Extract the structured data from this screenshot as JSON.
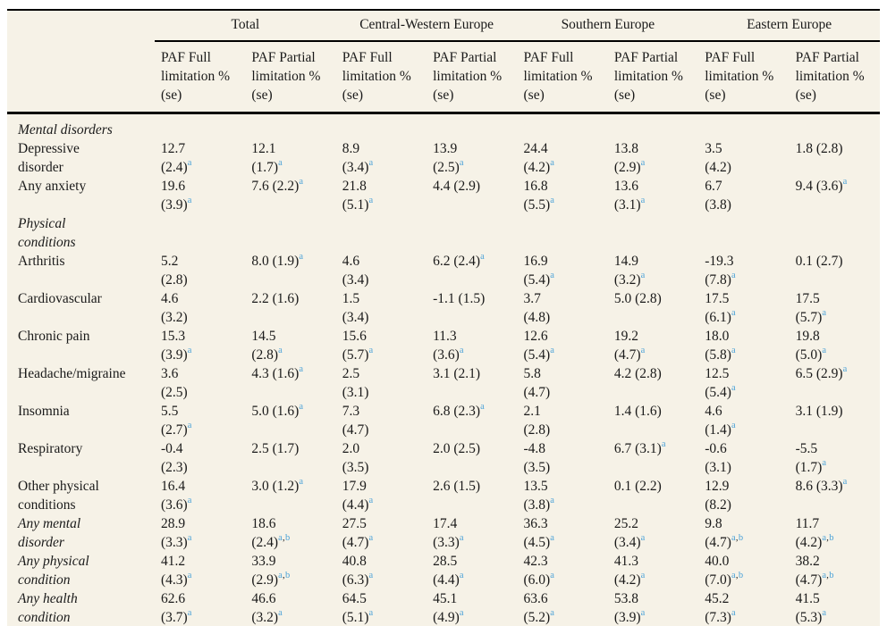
{
  "colors": {
    "table_background": "#f6f2e7",
    "text": "#1a1a1a",
    "superscript_blue": "#4da3d8",
    "rule": "#000000"
  },
  "table": {
    "group_headers": [
      {
        "label": "Total"
      },
      {
        "label": "Central-Western Europe"
      },
      {
        "label": "Southern Europe"
      },
      {
        "label": "Eastern Europe"
      }
    ],
    "col_headers": [
      "PAF Full\nlimitation %\n(se)",
      "PAF Partial\nlimitation %\n(se)",
      "PAF Full\nlimitation %\n(se)",
      "PAF Partial\nlimitation %\n(se)",
      "PAF Full\nlimitation %\n(se)",
      "PAF Partial\nlimitation %\n(se)",
      "PAF Full\nlimitation %\n(se)",
      "PAF Partial\nlimitation %\n(se)"
    ],
    "rows": [
      {
        "type": "section",
        "label": "Mental disorders",
        "cells": [
          "",
          "",
          "",
          "",
          "",
          "",
          "",
          ""
        ]
      },
      {
        "type": "data",
        "label": "Depressive\ndisorder",
        "cells": [
          "12.7\n(2.4)^a",
          "12.1\n(1.7)^a",
          "8.9\n(3.4)^a",
          "13.9\n(2.5)^a",
          "24.4\n(4.2)^a",
          "13.8\n(2.9)^a",
          "3.5\n(4.2)",
          "1.8 (2.8)"
        ]
      },
      {
        "type": "data",
        "label": "Any anxiety",
        "cells": [
          "19.6\n(3.9)^a",
          "7.6 (2.2)^a",
          "21.8\n(5.1)^a",
          "4.4 (2.9)",
          "16.8\n(5.5)^a",
          "13.6\n(3.1)^a",
          "6.7\n(3.8)",
          "9.4 (3.6)^a"
        ]
      },
      {
        "type": "section",
        "label": "Physical\nconditions",
        "cells": [
          "",
          "",
          "",
          "",
          "",
          "",
          "",
          ""
        ]
      },
      {
        "type": "data",
        "label": "Arthritis",
        "cells": [
          "5.2\n(2.8)",
          "8.0 (1.9)^a",
          "4.6\n(3.4)",
          "6.2 (2.4)^a",
          "16.9\n(5.4)^a",
          "14.9\n(3.2)^a",
          "-19.3\n(7.8)^a",
          "0.1 (2.7)"
        ]
      },
      {
        "type": "data",
        "label": "Cardiovascular",
        "cells": [
          "4.6\n(3.2)",
          "2.2 (1.6)",
          "1.5\n(3.4)",
          "-1.1 (1.5)",
          "3.7\n(4.8)",
          "5.0 (2.8)",
          "17.5\n(6.1)^a",
          "17.5\n(5.7)^a"
        ]
      },
      {
        "type": "data",
        "label": "Chronic pain",
        "cells": [
          "15.3\n(3.9)^a",
          "14.5\n(2.8)^a",
          "15.6\n(5.7)^a",
          "11.3\n(3.6)^a",
          "12.6\n(5.4)^a",
          "19.2\n(4.7)^a",
          "18.0\n(5.8)^a",
          "19.8\n(5.0)^a"
        ]
      },
      {
        "type": "data",
        "label": "Headache/migraine",
        "cells": [
          "3.6\n(2.5)",
          "4.3 (1.6)^a",
          "2.5\n(3.1)",
          "3.1 (2.1)",
          "5.8\n(4.7)",
          "4.2 (2.8)",
          "12.5\n(5.4)^a",
          "6.5 (2.9)^a"
        ]
      },
      {
        "type": "data",
        "label": "Insomnia",
        "cells": [
          "5.5\n(2.7)^a",
          "5.0 (1.6)^a",
          "7.3\n(4.7)",
          "6.8 (2.3)^a",
          "2.1\n(2.8)",
          "1.4 (1.6)",
          "4.6\n(1.4)^a",
          "3.1 (1.9)"
        ]
      },
      {
        "type": "data",
        "label": "Respiratory",
        "cells": [
          "-0.4\n(2.3)",
          "2.5 (1.7)",
          "2.0\n(3.5)",
          "2.0 (2.5)",
          "-4.8\n(3.5)",
          "6.7 (3.1)^a",
          "-0.6\n(3.1)",
          "-5.5\n(1.7)^a"
        ]
      },
      {
        "type": "data",
        "label": "Other physical\nconditions",
        "cells": [
          "16.4\n(3.6)^a",
          "3.0 (1.2)^a",
          "17.9\n(4.4)^a",
          "2.6 (1.5)",
          "13.5\n(3.8)^a",
          "0.1 (2.2)",
          "12.9\n(8.2)",
          "8.6 (3.3)^a"
        ]
      },
      {
        "type": "summary",
        "label": "Any mental\ndisorder",
        "cells": [
          "28.9\n(3.3)^a",
          "18.6\n(2.4)^a,b",
          "27.5\n(4.7)^a",
          "17.4\n(3.3)^a",
          "36.3\n(4.5)^a",
          "25.2\n(3.4)^a",
          "9.8\n(4.7)^a,b",
          "11.7\n(4.2)^a,b"
        ]
      },
      {
        "type": "summary",
        "label": "Any physical\ncondition",
        "cells": [
          "41.2\n(4.3)^a",
          "33.9\n(2.9)^a,b",
          "40.8\n(6.3)^a",
          "28.5\n(4.4)^a",
          "42.3\n(6.0)^a",
          "41.3\n(4.2)^a",
          "40.0\n(7.0)^a,b",
          "38.2\n(4.7)^a,b"
        ]
      },
      {
        "type": "summary",
        "label": "Any health\ncondition",
        "cells": [
          "62.6\n(3.7)^a",
          "46.6\n(3.2)^a",
          "64.5\n(5.1)^a",
          "45.1\n(4.9)^a",
          "63.6\n(5.2)^a",
          "53.8\n(3.9)^a",
          "45.2\n(7.3)^a",
          "41.5\n(5.3)^a"
        ]
      }
    ]
  }
}
